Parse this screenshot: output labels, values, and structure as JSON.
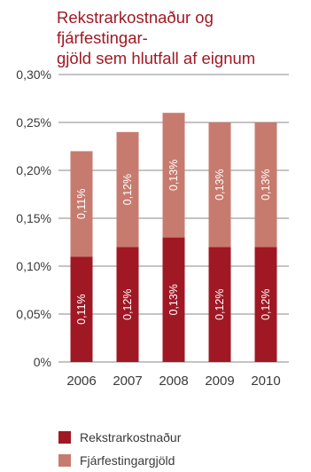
{
  "title_lines": [
    "Rekstrarkostnaður og fjárfestingar-",
    "gjöld sem hlutfall af eignum"
  ],
  "chart_data": {
    "type": "bar",
    "stacked": true,
    "categories": [
      "2006",
      "2007",
      "2008",
      "2009",
      "2010"
    ],
    "series": [
      {
        "name": "Rekstrarkostnaður",
        "values": [
          0.11,
          0.12,
          0.13,
          0.12,
          0.12
        ],
        "labels": [
          "0,11%",
          "0,12%",
          "0,13%",
          "0,12%",
          "0,12%"
        ],
        "color": "#a01824"
      },
      {
        "name": "Fjárfestingargjöld",
        "values": [
          0.11,
          0.12,
          0.13,
          0.13,
          0.13
        ],
        "labels": [
          "0,11%",
          "0,12%",
          "0,13%",
          "0,13%",
          "0,13%"
        ],
        "color": "#c77b6e"
      }
    ],
    "ylim": [
      0,
      0.3
    ],
    "yticks": [
      0,
      0.05,
      0.1,
      0.15,
      0.2,
      0.25,
      0.3
    ],
    "ytick_labels": [
      "0%",
      "0,05%",
      "0,10%",
      "0,15%",
      "0,20%",
      "0,25%",
      "0,30%"
    ],
    "grid": true,
    "legend_position": "bottom-left"
  }
}
